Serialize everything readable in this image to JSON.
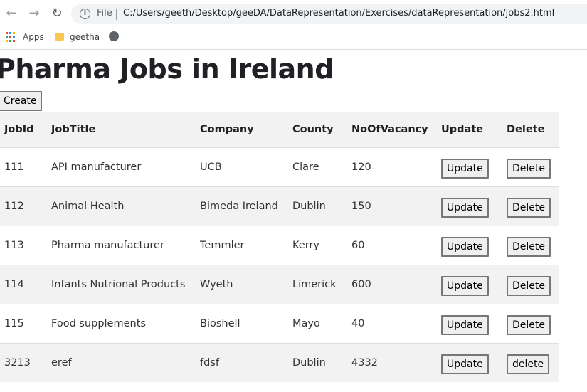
{
  "browser": {
    "nav": {
      "back": "←",
      "forward": "→",
      "reload": "↻"
    },
    "omnibox": {
      "security_label": "File",
      "url": "C:/Users/geeth/Desktop/geeDA/DataRepresentation/Exercises/dataRepresentation/jobs2.html"
    },
    "bookmarks": [
      {
        "label": "Apps",
        "icon": "apps-grid-icon"
      },
      {
        "label": "geetha",
        "icon": "folder-icon"
      },
      {
        "label": "",
        "icon": "globe-icon"
      }
    ]
  },
  "page": {
    "title": "Pharma Jobs in Ireland",
    "create_label": "Create",
    "table": {
      "headers": [
        "JobId",
        "JobTitle",
        "Company",
        "County",
        "NoOfVacancy",
        "Update",
        "Delete"
      ],
      "rows": [
        {
          "id": "111",
          "title": "API manufacturer",
          "company": "UCB",
          "county": "Clare",
          "vacancy": "120",
          "update": "Update",
          "delete": "Delete"
        },
        {
          "id": "112",
          "title": "Animal Health",
          "company": "Bimeda Ireland",
          "county": "Dublin",
          "vacancy": "150",
          "update": "Update",
          "delete": "Delete"
        },
        {
          "id": "113",
          "title": "Pharma manufacturer",
          "company": "Temmler",
          "county": "Kerry",
          "vacancy": "60",
          "update": "Update",
          "delete": "Delete"
        },
        {
          "id": "114",
          "title": "Infants Nutrional Products",
          "company": "Wyeth",
          "county": "Limerick",
          "vacancy": "600",
          "update": "Update",
          "delete": "Delete"
        },
        {
          "id": "115",
          "title": "Food supplements",
          "company": "Bioshell",
          "county": "Mayo",
          "vacancy": "40",
          "update": "Update",
          "delete": "Delete"
        },
        {
          "id": "3213",
          "title": "eref",
          "company": "fdsf",
          "county": "Dublin",
          "vacancy": "4332",
          "update": "Update",
          "delete": "delete"
        }
      ]
    }
  },
  "colors": {
    "stripe": "#f2f2f2",
    "button_bg": "#efefef",
    "button_border": "#767676"
  }
}
